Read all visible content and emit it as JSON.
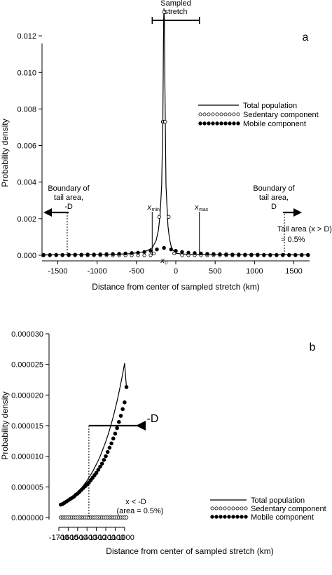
{
  "chart_data": [
    {
      "panel_label": "a",
      "type": "line",
      "xlabel": "Distance from center of sampled stretch (km)",
      "ylabel": "Probability density",
      "xlim": [
        -1700,
        1700
      ],
      "ylim": [
        0,
        0.0135
      ],
      "x_ticks": [
        -1500,
        -1000,
        -500,
        0,
        500,
        1000,
        1500
      ],
      "x_tick_labels": [
        "-1500",
        "-1000",
        "-500",
        "0",
        "500",
        "1000",
        "1500"
      ],
      "y_ticks": [
        0,
        0.002,
        0.004,
        0.006,
        0.008,
        0.01,
        0.012
      ],
      "y_tick_labels": [
        "0.000",
        "0.002",
        "0.004",
        "0.006",
        "0.008",
        "0.010",
        "0.012"
      ],
      "legend": {
        "position": "upper-right",
        "entries": [
          "Total population",
          "Sedentary component",
          "Mobile component"
        ]
      },
      "series": [
        {
          "name": "Total population",
          "style": "solid-line",
          "x": [
            -1680,
            -1200,
            -800,
            -600,
            -400,
            -300,
            -250,
            -220,
            -200,
            -180,
            -165,
            -160,
            -155,
            -150,
            -145,
            -140,
            -125,
            -100,
            -80,
            -60,
            -40,
            0,
            50,
            150,
            300,
            600,
            1000,
            1680
          ],
          "values": [
            2e-05,
            3e-05,
            5e-05,
            8e-05,
            0.00018,
            0.0004,
            0.0008,
            0.0014,
            0.0022,
            0.0038,
            0.0073,
            0.0098,
            0.0128,
            0.0135,
            0.0128,
            0.0098,
            0.0038,
            0.0016,
            0.0009,
            0.0005,
            0.0003,
            0.00012,
            8e-05,
            5e-05,
            4e-05,
            3e-05,
            3e-05,
            2e-05
          ]
        },
        {
          "name": "Sedentary component",
          "style": "open-circles",
          "x": [
            -1680,
            -1600,
            -1520,
            -1440,
            -1360,
            -1280,
            -1200,
            -1120,
            -1040,
            -960,
            -880,
            -800,
            -720,
            -640,
            -560,
            -480,
            -400,
            -320,
            -280,
            -210,
            -165,
            -160,
            -150,
            -140,
            -135,
            -90,
            -20,
            80,
            160,
            240,
            320,
            400,
            480,
            560,
            640,
            720,
            800,
            880,
            960,
            1040,
            1120,
            1200,
            1280,
            1360,
            1440,
            1520,
            1600,
            1680
          ],
          "values": [
            0,
            0,
            0,
            0,
            0,
            0,
            0,
            0,
            0,
            0,
            0,
            0,
            0,
            0,
            0,
            0,
            0,
            0,
            0.0001,
            0.0021,
            0.0073,
            0.0073,
            0.0133,
            0.0073,
            0.0073,
            0.0021,
            0.0001,
            0,
            0,
            0,
            0,
            0,
            0,
            0,
            0,
            0,
            0,
            0,
            0,
            0,
            0,
            0,
            0,
            0,
            0,
            0,
            0,
            0
          ]
        },
        {
          "name": "Mobile component",
          "style": "filled-dots",
          "x": [
            -1680,
            -1600,
            -1520,
            -1440,
            -1360,
            -1280,
            -1200,
            -1120,
            -1040,
            -960,
            -880,
            -800,
            -720,
            -640,
            -560,
            -480,
            -400,
            -320,
            -240,
            -150,
            -60,
            0,
            80,
            160,
            240,
            320,
            400,
            480,
            560,
            640,
            720,
            800,
            880,
            960,
            1040,
            1120,
            1200,
            1280,
            1360,
            1440,
            1520,
            1600,
            1680
          ],
          "values": [
            2e-05,
            2e-05,
            2e-05,
            2e-05,
            3e-05,
            3e-05,
            3e-05,
            4e-05,
            4e-05,
            5e-05,
            6e-05,
            7e-05,
            8e-05,
            0.0001,
            0.00012,
            0.00014,
            0.00018,
            0.00024,
            0.00032,
            0.0004,
            0.00032,
            0.00024,
            0.00018,
            0.00014,
            0.00012,
            0.0001,
            8e-05,
            7e-05,
            6e-05,
            5e-05,
            4e-05,
            4e-05,
            3e-05,
            3e-05,
            3e-05,
            2e-05,
            2e-05,
            2e-05,
            2e-05,
            2e-05,
            2e-05,
            2e-05,
            2e-05
          ]
        }
      ],
      "annotations": {
        "sampled_stretch_label_line1": "Sampled",
        "sampled_stretch_label_line2": "stretch",
        "sampled_stretch_range": [
          -300,
          300
        ],
        "x0_label": "x",
        "x0_sub": "0",
        "x0_value": -150,
        "xmin_label": "x",
        "xmin_sub": "min",
        "xmin_value": -300,
        "xmax_label": "x",
        "xmax_sub": "max",
        "xmax_value": 300,
        "left_boundary_lines": [
          "Boundary of",
          "tail area,",
          "-D"
        ],
        "left_boundary_value": -1380,
        "right_boundary_lines": [
          "Boundary of",
          "tail area,",
          "D"
        ],
        "right_boundary_value": 1380,
        "tail_area_line1": "Tail area (x > D)",
        "tail_area_line2": "= 0.5%"
      }
    },
    {
      "panel_label": "b",
      "type": "line",
      "xlabel": "Distance from center of sampled stretch (km)",
      "ylabel": "Probability density",
      "xlim": [
        -1700,
        -970
      ],
      "ylim": [
        0,
        3e-05
      ],
      "x_ticks": [
        -1700,
        -1600,
        -1500,
        -1400,
        -1300,
        -1200,
        -1100,
        -1000
      ],
      "x_tick_labels": [
        "-1700",
        "-1600",
        "-1500",
        "-1400",
        "-1300",
        "-1200",
        "-1100",
        "-1000"
      ],
      "y_ticks": [
        0,
        5e-06,
        1e-05,
        1.5e-05,
        2e-05,
        2.5e-05,
        3e-05
      ],
      "y_tick_labels": [
        "0.000000",
        "0.000005",
        "0.000010",
        "0.000015",
        "0.000020",
        "0.000025",
        "0.000030"
      ],
      "legend": {
        "position": "lower-right",
        "entries": [
          "Total population",
          "Sedentary component",
          "Mobile component"
        ]
      },
      "series": [
        {
          "name": "Total population",
          "style": "solid-line",
          "x": [
            -1680,
            -1660,
            -1640,
            -1620,
            -1600,
            -1580,
            -1560,
            -1540,
            -1520,
            -1500,
            -1480,
            -1460,
            -1440,
            -1420,
            -1400,
            -1380,
            -1360,
            -1340,
            -1320,
            -1300,
            -1280,
            -1260,
            -1240,
            -1220,
            -1200,
            -1180,
            -1160,
            -1140,
            -1120,
            -1100,
            -1080,
            -1060,
            -1040,
            -1020,
            -1000,
            -980
          ],
          "values": [
            2.1e-06,
            2.3e-06,
            2.5e-06,
            2.7e-06,
            2.9e-06,
            3.1e-06,
            3.4e-06,
            3.6e-06,
            3.9e-06,
            4.2e-06,
            4.5e-06,
            4.8e-06,
            5.2e-06,
            5.6e-06,
            6e-06,
            6.5e-06,
            7e-06,
            7.5e-06,
            8.1e-06,
            8.7e-06,
            9.3e-06,
            1e-05,
            1.08e-05,
            1.16e-05,
            1.24e-05,
            1.33e-05,
            1.43e-05,
            1.54e-05,
            1.65e-05,
            1.77e-05,
            1.9e-05,
            2.04e-05,
            2.19e-05,
            2.35e-05,
            2.52e-05,
            2.13e-05
          ]
        },
        {
          "name": "Sedentary component",
          "style": "open-circles",
          "x": [
            -1680,
            -1660,
            -1640,
            -1620,
            -1600,
            -1580,
            -1560,
            -1540,
            -1520,
            -1500,
            -1480,
            -1460,
            -1440,
            -1420,
            -1400,
            -1380,
            -1360,
            -1340,
            -1320,
            -1300,
            -1280,
            -1260,
            -1240,
            -1220,
            -1200,
            -1180,
            -1160,
            -1140,
            -1120,
            -1100,
            -1080,
            -1060,
            -1040,
            -1020,
            -1000,
            -980
          ],
          "values": [
            0,
            0,
            0,
            0,
            0,
            0,
            0,
            0,
            0,
            0,
            0,
            0,
            0,
            0,
            0,
            0,
            0,
            0,
            0,
            0,
            0,
            0,
            0,
            0,
            0,
            0,
            0,
            0,
            0,
            0,
            0,
            0,
            0,
            0,
            0,
            0
          ]
        },
        {
          "name": "Mobile component",
          "style": "filled-dots",
          "x": [
            -1680,
            -1660,
            -1640,
            -1620,
            -1600,
            -1580,
            -1560,
            -1540,
            -1520,
            -1500,
            -1480,
            -1460,
            -1440,
            -1420,
            -1400,
            -1380,
            -1360,
            -1340,
            -1320,
            -1300,
            -1280,
            -1260,
            -1240,
            -1220,
            -1200,
            -1180,
            -1160,
            -1140,
            -1120,
            -1100,
            -1080,
            -1060,
            -1040,
            -1020,
            -1000,
            -980
          ],
          "values": [
            2.1e-06,
            2.2e-06,
            2.4e-06,
            2.6e-06,
            2.8e-06,
            3e-06,
            3.2e-06,
            3.4e-06,
            3.7e-06,
            3.9e-06,
            4.2e-06,
            4.5e-06,
            4.8e-06,
            5.1e-06,
            5.4e-06,
            5.7e-06,
            6.1e-06,
            6.5e-06,
            6.9e-06,
            7.3e-06,
            7.8e-06,
            8.3e-06,
            8.8e-06,
            9.4e-06,
            1e-05,
            1.07e-05,
            1.14e-05,
            1.21e-05,
            1.29e-05,
            1.37e-05,
            1.46e-05,
            1.56e-05,
            1.66e-05,
            1.77e-05,
            1.88e-05,
            2.13e-05
          ]
        }
      ],
      "annotations": {
        "neg_d_label": "-D",
        "neg_d_value": -1380,
        "tail_note_line1": "x < -D",
        "tail_note_line2": "(area = 0.5%)"
      }
    }
  ]
}
